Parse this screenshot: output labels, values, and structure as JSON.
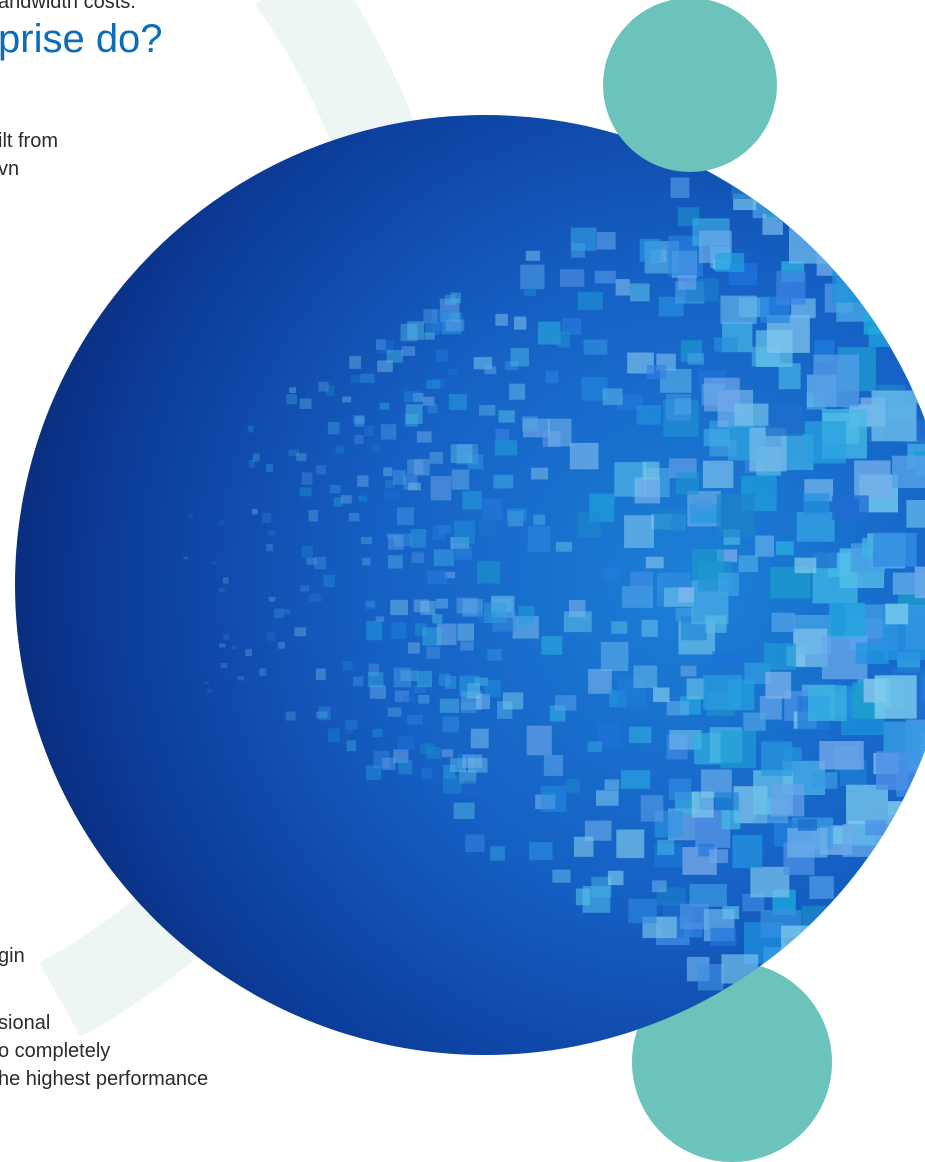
{
  "text": {
    "top_line": "andwidth costs.",
    "heading": "prise do?",
    "paragraph_1": [
      "ilt from",
      "vn"
    ],
    "paragraph_2": [
      "gin",
      "sional",
      "o completely",
      "he highest performance"
    ]
  }
}
